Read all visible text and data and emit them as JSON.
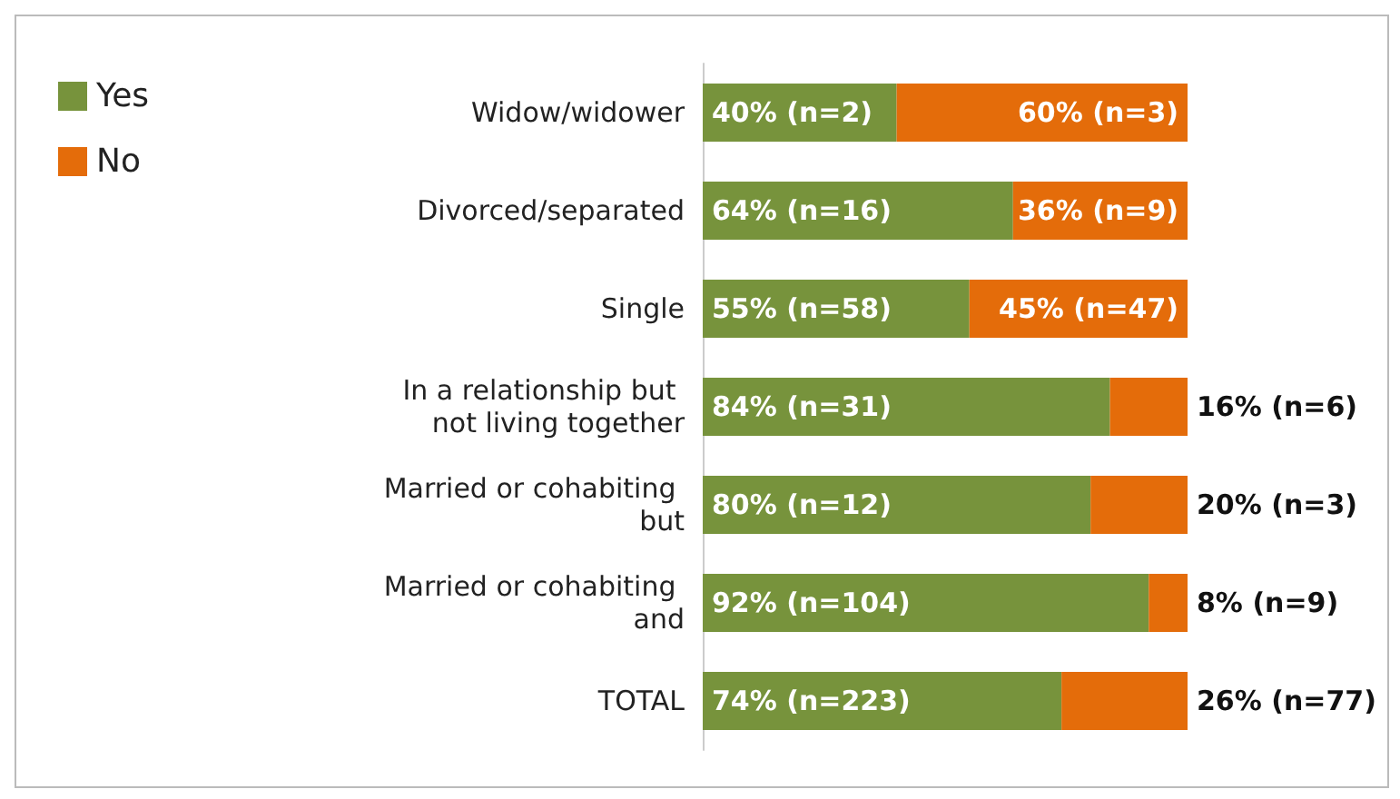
{
  "chart_data": {
    "type": "bar",
    "orientation": "horizontal",
    "stacked": true,
    "categories": [
      "Widow/widower",
      "Divorced/separated",
      "Single",
      "In a relationship but not living together",
      "Married or cohabiting but",
      "Married or cohabiting and",
      "TOTAL"
    ],
    "xlim": [
      0,
      100
    ],
    "series": [
      {
        "name": "Yes",
        "color": "#77933c",
        "values": [
          40,
          64,
          55,
          84,
          80,
          92,
          74
        ],
        "value_labels": [
          "40% (n=2)",
          "64% (n=16)",
          "55% (n=58)",
          "84% (n=31)",
          "80% (n=12)",
          "92% (n=104)",
          "74% (n=223)"
        ]
      },
      {
        "name": "No",
        "color": "#e46c0a",
        "values": [
          60,
          36,
          45,
          16,
          20,
          8,
          26
        ],
        "value_labels": [
          "60% (n=3)",
          "36% (n=9)",
          "45% (n=47)",
          "16% (n=6)",
          "20% (n=3)",
          "8% (n=9)",
          "26% (n=77)"
        ]
      }
    ],
    "legend": "top left",
    "grid": false,
    "tick_labels": "y"
  }
}
